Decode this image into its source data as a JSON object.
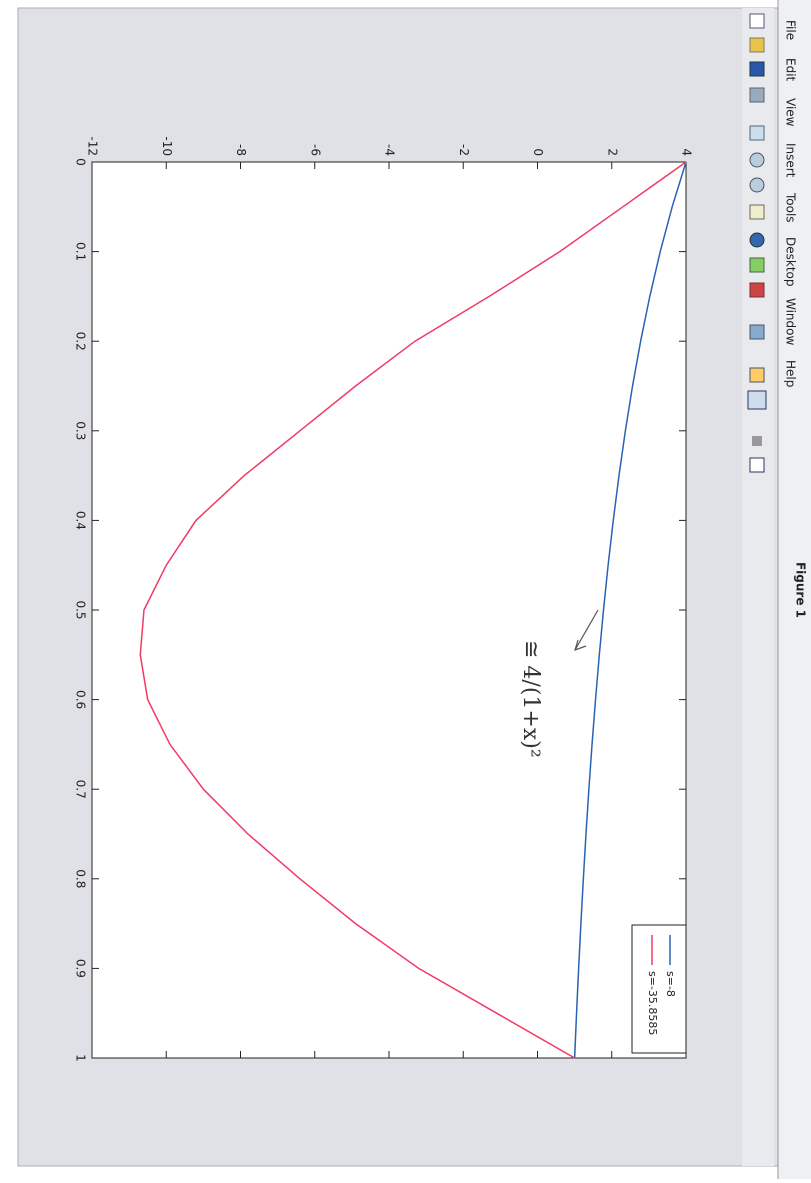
{
  "window": {
    "title": "Figure 1",
    "menu": [
      "File",
      "Edit",
      "View",
      "Insert",
      "Tools",
      "Desktop",
      "Window",
      "Help"
    ]
  },
  "chart_data": {
    "type": "line",
    "x": [
      0,
      0.05,
      0.1,
      0.15,
      0.2,
      0.25,
      0.3,
      0.35,
      0.4,
      0.45,
      0.5,
      0.55,
      0.6,
      0.65,
      0.7,
      0.75,
      0.8,
      0.85,
      0.9,
      0.95,
      1
    ],
    "series": [
      {
        "name": "s=-8",
        "color": "#2a62b4",
        "values": [
          4,
          3.628,
          3.306,
          3.025,
          2.778,
          2.56,
          2.367,
          2.195,
          2.041,
          1.902,
          1.778,
          1.665,
          1.563,
          1.469,
          1.384,
          1.306,
          1.235,
          1.169,
          1.108,
          1.052,
          1
        ]
      },
      {
        "name": "s=-35.8585",
        "color": "#f23a64",
        "values": [
          4,
          2.3,
          0.6,
          -1.3,
          -3.3,
          -4.9,
          -6.4,
          -7.9,
          -9.2,
          -10.0,
          -10.6,
          -10.7,
          -10.5,
          -9.9,
          -9.0,
          -7.8,
          -6.4,
          -4.9,
          -3.2,
          -1.1,
          1
        ]
      }
    ],
    "xlim": [
      0,
      1
    ],
    "xticks": [
      0,
      0.1,
      0.2,
      0.3,
      0.4,
      0.5,
      0.6,
      0.7,
      0.8,
      0.9,
      1
    ],
    "ylim": [
      -12,
      4
    ],
    "yticks": [
      -12,
      -10,
      -8,
      -6,
      -4,
      -2,
      0,
      2,
      4
    ],
    "legend": "top-right",
    "annotation": "≅ 4/(1+x)²"
  }
}
